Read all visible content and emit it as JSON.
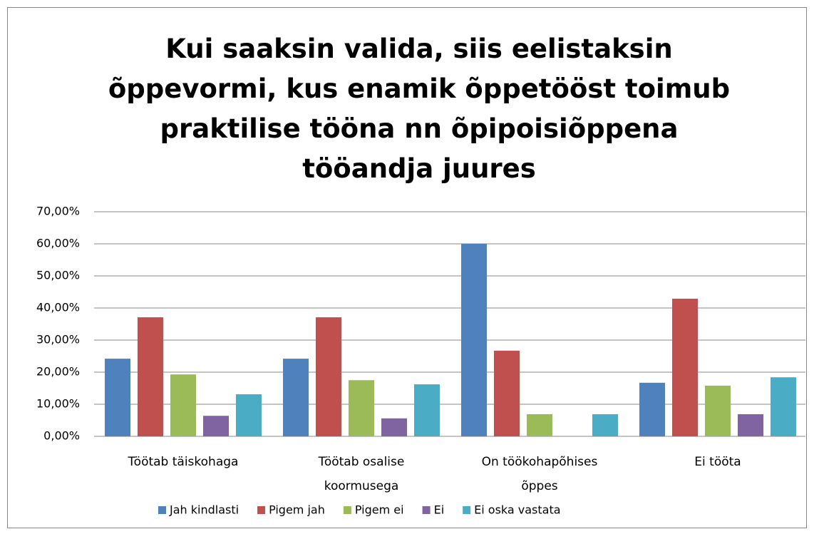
{
  "chart_data": {
    "type": "bar",
    "title": "Kui saaksin valida, siis eelistaksin\nõppevormi, kus enamik õppetööst toimub\npraktilise tööna nn õpipoisiõppena\ntööandja juures",
    "categories": [
      "Töötab täiskohaga",
      "Töötab osalise\nkoormusega",
      "On töökohapõhises\nõppes",
      "Ei tööta"
    ],
    "series": [
      {
        "name": "Jah kindlasti",
        "color": "#4f81bd",
        "values": [
          24.2,
          24.2,
          60,
          16.7
        ]
      },
      {
        "name": "Pigem jah",
        "color": "#c0504d",
        "values": [
          37.1,
          37.1,
          26.7,
          42.9
        ]
      },
      {
        "name": "Pigem ei",
        "color": "#9bbb59",
        "values": [
          19.3,
          17.5,
          6.9,
          15.8
        ]
      },
      {
        "name": "Ei",
        "color": "#8064a2",
        "values": [
          6.4,
          5.6,
          0,
          6.9
        ]
      },
      {
        "name": "Ei oska vastata",
        "color": "#4bacc6",
        "values": [
          13.1,
          16.2,
          6.9,
          18.4
        ]
      }
    ],
    "ylim": [
      0,
      70
    ],
    "yticks": [
      {
        "value": 0,
        "label": "0,00%"
      },
      {
        "value": 10,
        "label": "10,00%"
      },
      {
        "value": 20,
        "label": "20,00%"
      },
      {
        "value": 30,
        "label": "30,00%"
      },
      {
        "value": 40,
        "label": "40,00%"
      },
      {
        "value": 50,
        "label": "50,00%"
      },
      {
        "value": 60,
        "label": "60,00%"
      },
      {
        "value": 70,
        "label": "70,00%"
      }
    ],
    "grid": true,
    "legend": "bottom"
  }
}
